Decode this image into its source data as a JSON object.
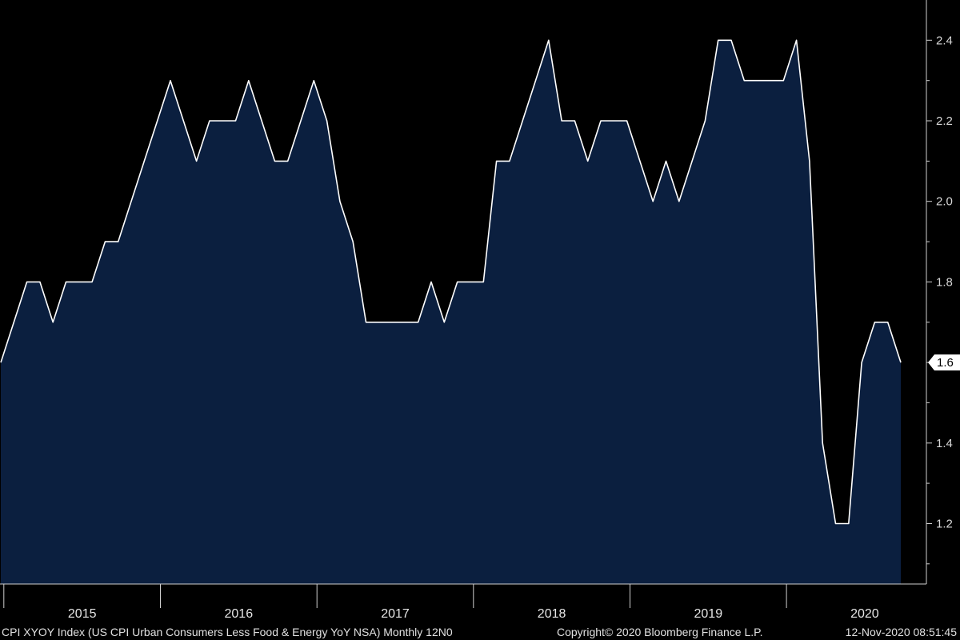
{
  "chart_data": {
    "type": "area",
    "title": "",
    "xlabel": "",
    "ylabel": "",
    "x_start": "2015-01",
    "frequency": "monthly",
    "x": [
      "2015-01",
      "2015-02",
      "2015-03",
      "2015-04",
      "2015-05",
      "2015-06",
      "2015-07",
      "2015-08",
      "2015-09",
      "2015-10",
      "2015-11",
      "2015-12",
      "2016-01",
      "2016-02",
      "2016-03",
      "2016-04",
      "2016-05",
      "2016-06",
      "2016-07",
      "2016-08",
      "2016-09",
      "2016-10",
      "2016-11",
      "2016-12",
      "2017-01",
      "2017-02",
      "2017-03",
      "2017-04",
      "2017-05",
      "2017-06",
      "2017-07",
      "2017-08",
      "2017-09",
      "2017-10",
      "2017-11",
      "2017-12",
      "2018-01",
      "2018-02",
      "2018-03",
      "2018-04",
      "2018-05",
      "2018-06",
      "2018-07",
      "2018-08",
      "2018-09",
      "2018-10",
      "2018-11",
      "2018-12",
      "2019-01",
      "2019-02",
      "2019-03",
      "2019-04",
      "2019-05",
      "2019-06",
      "2019-07",
      "2019-08",
      "2019-09",
      "2019-10",
      "2019-11",
      "2019-12",
      "2020-01",
      "2020-02",
      "2020-03",
      "2020-04",
      "2020-05",
      "2020-06",
      "2020-07",
      "2020-08",
      "2020-09",
      "2020-10"
    ],
    "series": [
      {
        "name": "",
        "values": [
          1.6,
          1.7,
          1.8,
          1.8,
          1.7,
          1.8,
          1.8,
          1.8,
          1.9,
          1.9,
          2.0,
          2.1,
          2.2,
          2.3,
          2.2,
          2.1,
          2.2,
          2.2,
          2.2,
          2.3,
          2.2,
          2.1,
          2.1,
          2.2,
          2.3,
          2.2,
          2.0,
          1.9,
          1.7,
          1.7,
          1.7,
          1.7,
          1.7,
          1.8,
          1.7,
          1.8,
          1.8,
          1.8,
          2.1,
          2.1,
          2.2,
          2.3,
          2.4,
          2.2,
          2.2,
          2.1,
          2.2,
          2.2,
          2.2,
          2.1,
          2.0,
          2.1,
          2.0,
          2.1,
          2.2,
          2.4,
          2.4,
          2.3,
          2.3,
          2.3,
          2.3,
          2.4,
          2.1,
          1.4,
          1.2,
          1.2,
          1.6,
          1.7,
          1.7,
          1.6
        ],
        "color": "#ffffff",
        "fill": "#0b1f3f"
      }
    ],
    "ylim": [
      1.05,
      2.5
    ],
    "yticks": [
      "1.2",
      "1.4",
      "1.6",
      "1.8",
      "2.0",
      "2.2",
      "2.4"
    ],
    "year_labels": [
      "2015",
      "2016",
      "2017",
      "2018",
      "2019",
      "2020"
    ],
    "last_value_label": "1.6",
    "grid": false,
    "legend": "none"
  },
  "footer": {
    "ticker": "CPI XYOY Index (US CPI Urban Consumers Less Food & Energy YoY NSA)  Monthly 12N0",
    "copyright": "Copyright© 2020 Bloomberg Finance L.P.",
    "timestamp": "12-Nov-2020 08:51:45"
  },
  "colors": {
    "background": "#000000",
    "area_fill": "#0b1f3f",
    "line": "#ffffff",
    "axis": "#cfcfcf"
  }
}
